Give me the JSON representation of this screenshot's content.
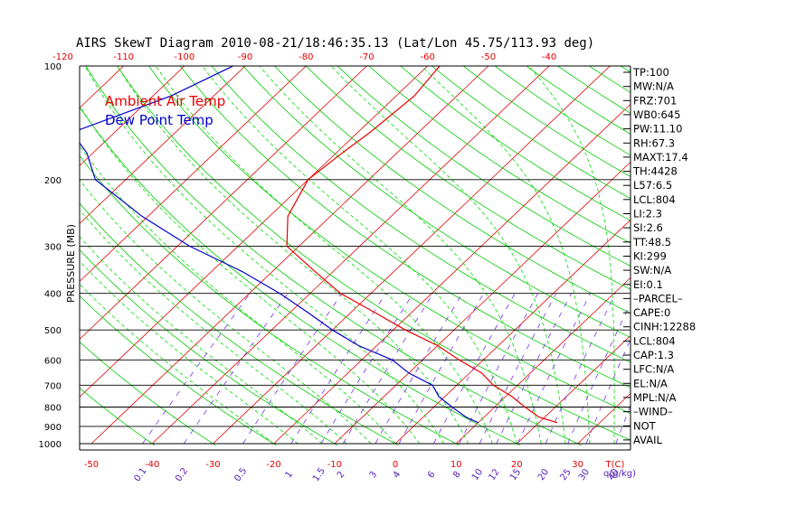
{
  "chart_data": {
    "type": "line",
    "title": "AIRS SkewT Diagram 2010-08-21/18:46:35.13 (Lat/Lon 45.75/113.93 deg)",
    "ylabel": "PRESSURE (MB)",
    "xlabel": "T(C)",
    "mixing_ratio_unit_label": "q(g/kg)",
    "top_ticks": [
      "-120",
      "-110",
      "-100",
      "-90",
      "-80",
      "-70",
      "-60",
      "-50",
      "-40"
    ],
    "bottom_ticks": [
      "-50",
      "-40",
      "-30",
      "-20",
      "-10",
      "0",
      "10",
      "20",
      "30"
    ],
    "mixing_ratio_ticks": [
      "0.1",
      "0.2",
      "0.5",
      "1",
      "1.5",
      "2",
      "3",
      "4",
      "6",
      "8",
      "10",
      "12",
      "15",
      "20",
      "25",
      "30",
      "40"
    ],
    "pressure_ticks": [
      "100",
      "200",
      "300",
      "400",
      "500",
      "600",
      "700",
      "800",
      "900",
      "1000"
    ],
    "legend": [
      "Ambient Air Temp",
      "Dew Point Temp"
    ],
    "colors": {
      "air": "#e60000",
      "dew": "#0000cc",
      "isotherm": "#e00000",
      "dry_adiabat": "#00cc00",
      "moist_adiabat": "#00dd00",
      "mixing_ratio": "#7733ee",
      "axis": "#000000"
    },
    "series": [
      {
        "name": "Ambient Air Temp",
        "points": [
          [
            100,
            -58
          ],
          [
            120,
            -57
          ],
          [
            150,
            -58
          ],
          [
            170,
            -59
          ],
          [
            200,
            -60
          ],
          [
            250,
            -57
          ],
          [
            300,
            -52
          ],
          [
            350,
            -43
          ],
          [
            400,
            -35
          ],
          [
            450,
            -26
          ],
          [
            500,
            -18
          ],
          [
            550,
            -10
          ],
          [
            600,
            -4
          ],
          [
            650,
            2
          ],
          [
            700,
            6
          ],
          [
            750,
            11
          ],
          [
            800,
            15
          ],
          [
            850,
            19
          ],
          [
            880,
            23
          ]
        ]
      },
      {
        "name": "Dew Point Temp",
        "points": [
          [
            100,
            -92
          ],
          [
            120,
            -97
          ],
          [
            150,
            -107
          ],
          [
            170,
            -101
          ],
          [
            200,
            -95
          ],
          [
            250,
            -81
          ],
          [
            300,
            -68
          ],
          [
            350,
            -55
          ],
          [
            400,
            -45
          ],
          [
            450,
            -37
          ],
          [
            500,
            -30
          ],
          [
            550,
            -23
          ],
          [
            600,
            -15
          ],
          [
            650,
            -10
          ],
          [
            700,
            -4
          ],
          [
            750,
            -1
          ],
          [
            800,
            3
          ],
          [
            850,
            7
          ],
          [
            880,
            10
          ]
        ]
      }
    ],
    "indices": [
      "TP:100",
      "MW:N/A",
      "FRZ:701",
      "WB0:645",
      "PW:11.10",
      "RH:67.3",
      "MAXT:17.4",
      "TH:4428",
      "L57:6.5",
      "LCL:804",
      "LI:2.3",
      "SI:2.6",
      "TT:48.5",
      "KI:299",
      "SW:N/A",
      "EI:0.1",
      "–PARCEL–",
      "CAPE:0",
      "CINH:12288",
      "LCL:804",
      "CAP:1.3",
      "LFC:N/A",
      "EL:N/A",
      "MPL:N/A",
      "–WIND–",
      "NOT",
      "AVAIL"
    ]
  }
}
